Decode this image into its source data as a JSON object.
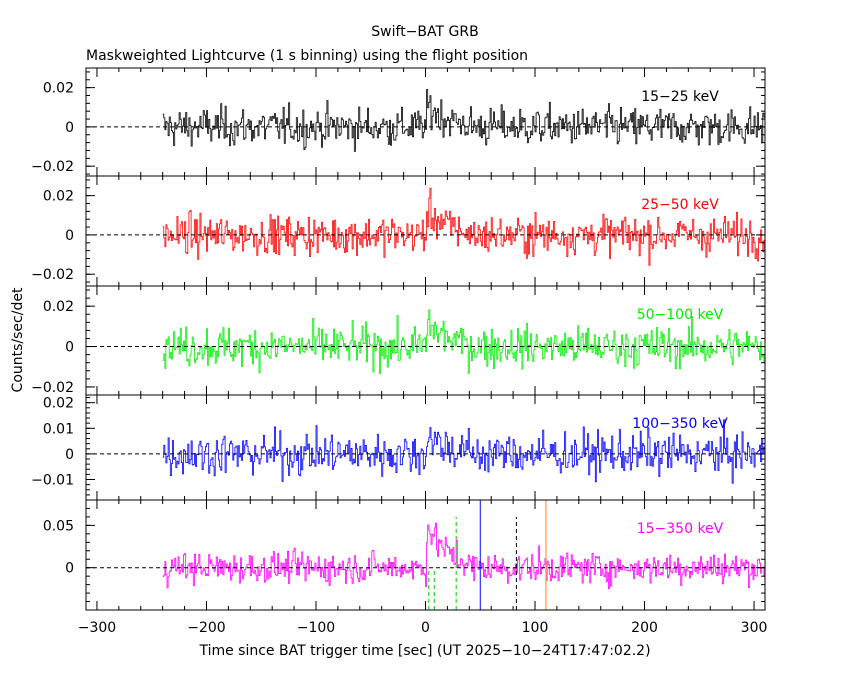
{
  "chart_data": {
    "type": "line",
    "title": "Swift−BAT GRB",
    "subtitle": "Maskweighted Lightcurve (1 s binning) using the flight position",
    "xlabel": "Time since BAT trigger time [sec] (UT 2025−10−24T17:47:02.2)",
    "ylabel": "Counts/sec/det",
    "xlim": [
      -310,
      310
    ],
    "x_ticks": [
      -300,
      -200,
      -100,
      0,
      100,
      200,
      300
    ],
    "x_tick_labels": [
      "−300",
      "−200",
      "−100",
      "0",
      "100",
      "200",
      "300"
    ],
    "data_range": [
      -240,
      310
    ],
    "panels": [
      {
        "name": "15−25 keV",
        "color": "#000000",
        "ylim": [
          -0.025,
          0.03
        ],
        "yticks": [
          -0.02,
          0,
          0.02
        ],
        "ytick_labels": [
          "−0.02",
          "0",
          "0.02"
        ],
        "noise": 0.0065,
        "peak": 0.012
      },
      {
        "name": "25−50 keV",
        "color": "#ff0000",
        "ylim": [
          -0.026,
          0.03
        ],
        "yticks": [
          -0.02,
          0,
          0.02
        ],
        "ytick_labels": [
          "−0.02",
          "0",
          "0.02"
        ],
        "noise": 0.0065,
        "peak": 0.014
      },
      {
        "name": "50−100 keV",
        "color": "#00ee00",
        "ylim": [
          -0.024,
          0.03
        ],
        "yticks": [
          -0.02,
          0,
          0.02
        ],
        "ytick_labels": [
          "−0.02",
          "0",
          "0.02"
        ],
        "noise": 0.0065,
        "peak": 0.013
      },
      {
        "name": "100−350 keV",
        "color": "#0000ff",
        "ylim": [
          -0.018,
          0.023
        ],
        "yticks": [
          -0.01,
          0,
          0.01,
          0.02
        ],
        "ytick_labels": [
          "−0.01",
          "0",
          "0.01",
          "0.02"
        ],
        "noise": 0.0055,
        "peak": 0.008
      },
      {
        "name": "15−350 keV",
        "color": "#ff00ff",
        "ylim": [
          -0.05,
          0.08
        ],
        "yticks": [
          0,
          0.05
        ],
        "ytick_labels": [
          "0",
          "0.05"
        ],
        "noise": 0.012,
        "peak": 0.055,
        "vlines": [
          {
            "x": 3,
            "color": "#00cc00",
            "dash": "4,3",
            "y0": -0.05,
            "y1": 0.0
          },
          {
            "x": 8,
            "color": "#00cc00",
            "dash": "4,3",
            "y0": -0.05,
            "y1": 0.0
          },
          {
            "x": 28,
            "color": "#00cc00",
            "dash": "4,3",
            "y0": -0.05,
            "y1": 0.06
          },
          {
            "x": 50,
            "color": "#0000ff",
            "dash": "",
            "y0": -0.05,
            "y1": 0.08
          },
          {
            "x": 83,
            "color": "#000000",
            "dash": "4,3",
            "y0": -0.05,
            "y1": 0.06
          },
          {
            "x": 110,
            "color": "#ff8800",
            "dash": "",
            "y0": -0.05,
            "y1": 0.08
          }
        ]
      }
    ]
  }
}
